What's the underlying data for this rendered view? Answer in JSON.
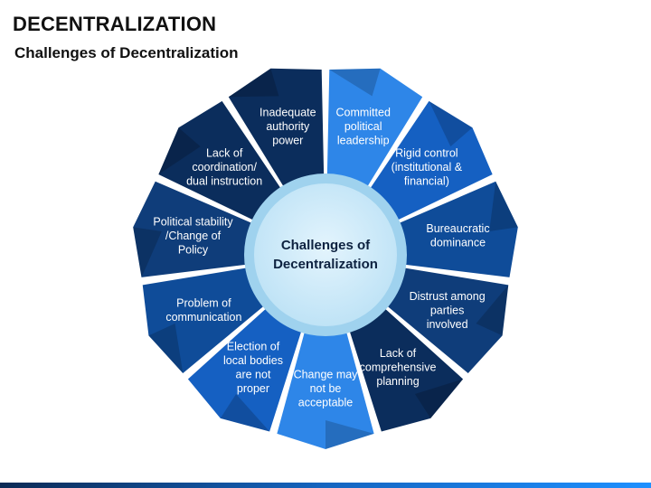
{
  "title": "DECENTRALIZATION",
  "subtitle": "Challenges of Decentralization",
  "center": {
    "lines": [
      "Challenges of",
      "Decentralization"
    ]
  },
  "segments": [
    {
      "lines": [
        "Committed",
        "political",
        "leadership"
      ],
      "color": "#2e86e8"
    },
    {
      "lines": [
        "Rigid control",
        "(institutional &",
        "financial)"
      ],
      "color": "#1560c2"
    },
    {
      "lines": [
        "Bureaucratic",
        "dominance"
      ],
      "color": "#0f4c99"
    },
    {
      "lines": [
        "Distrust among",
        "parties",
        "involved"
      ],
      "color": "#0f3d7a"
    },
    {
      "lines": [
        "Lack of",
        "comprehensive",
        "planning"
      ],
      "color": "#0b2d5c"
    },
    {
      "lines": [
        "Change may",
        "not be",
        "acceptable"
      ],
      "color": "#2e86e8"
    },
    {
      "lines": [
        "Election of",
        "local bodies",
        "are not",
        "proper"
      ],
      "color": "#1560c2"
    },
    {
      "lines": [
        "Problem of",
        "communication"
      ],
      "color": "#0f4c99"
    },
    {
      "lines": [
        "Political stability",
        "/Change of",
        "Policy"
      ],
      "color": "#0f3d7a"
    },
    {
      "lines": [
        "Lack of",
        "coordination/",
        "dual instruction"
      ],
      "color": "#0b2d5c"
    },
    {
      "lines": [
        "Inadequate",
        "authority",
        "power"
      ],
      "color": "#0b2d5c"
    }
  ]
}
